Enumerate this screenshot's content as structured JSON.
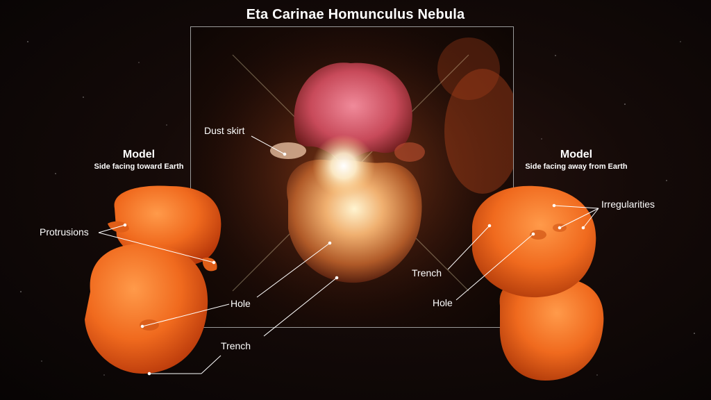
{
  "title": "Eta Carinae Homunculus Nebula",
  "left_model": {
    "heading": "Model",
    "subheading": "Side facing toward Earth"
  },
  "right_model": {
    "heading": "Model",
    "subheading": "Side facing away from Earth"
  },
  "labels": {
    "dust_skirt": "Dust skirt",
    "protrusions": "Protrusions",
    "hole_center": "Hole",
    "trench_center": "Trench",
    "trench_right": "Trench",
    "hole_right": "Hole",
    "irregularities": "Irregularities"
  },
  "colors": {
    "model_orange": "#f06a1e",
    "lobe_pink": "#c84a5a",
    "label_line": "#ffffff"
  }
}
